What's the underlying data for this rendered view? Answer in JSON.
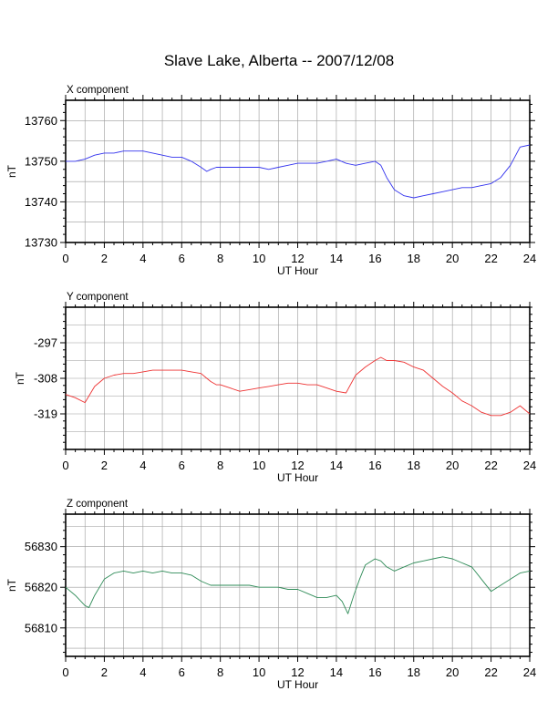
{
  "title": "Slave Lake, Alberta -- 2007/12/08",
  "chart_data": [
    {
      "type": "line",
      "title": "X component",
      "xlabel": "UT Hour",
      "ylabel": "nT",
      "xlim": [
        0,
        24
      ],
      "ylim": [
        13730,
        13765
      ],
      "xticks": [
        0,
        2,
        4,
        6,
        8,
        10,
        12,
        14,
        16,
        18,
        20,
        22,
        24
      ],
      "yticks": [
        13730,
        13740,
        13750,
        13760
      ],
      "grid": true,
      "color": "#3333ee",
      "series": [
        {
          "x": [
            0,
            0.5,
            1,
            1.5,
            2,
            2.5,
            3,
            3.5,
            4,
            4.5,
            5,
            5.5,
            6,
            6.5,
            7,
            7.3,
            7.5,
            7.8,
            8,
            8.5,
            9,
            9.5,
            10,
            10.5,
            11,
            11.5,
            12,
            12.5,
            13,
            13.5,
            14,
            14.5,
            15,
            15.5,
            16,
            16.3,
            16.6,
            17,
            17.5,
            18,
            18.5,
            19,
            19.5,
            20,
            20.5,
            21,
            21.5,
            22,
            22.5,
            23,
            23.5,
            24
          ],
          "y": [
            13750,
            13750,
            13750.5,
            13751.5,
            13752,
            13752,
            13752.5,
            13752.5,
            13752.5,
            13752,
            13751.5,
            13751,
            13751,
            13750,
            13748.5,
            13747.5,
            13748,
            13748.5,
            13748.5,
            13748.5,
            13748.5,
            13748.5,
            13748.5,
            13748,
            13748.5,
            13749,
            13749.5,
            13749.5,
            13749.5,
            13750,
            13750.5,
            13749.5,
            13749,
            13749.5,
            13750,
            13749,
            13746,
            13743,
            13741.5,
            13741,
            13741.5,
            13742,
            13742.5,
            13743,
            13743.5,
            13743.5,
            13744,
            13744.5,
            13746,
            13749,
            13753.5,
            13754
          ]
        }
      ]
    },
    {
      "type": "line",
      "title": "Y component",
      "xlabel": "UT Hour",
      "ylabel": "nT",
      "xlim": [
        0,
        24
      ],
      "ylim": [
        -330,
        -286
      ],
      "xticks": [
        0,
        2,
        4,
        6,
        8,
        10,
        12,
        14,
        16,
        18,
        20,
        22,
        24
      ],
      "yticks": [
        -319,
        -308,
        -297
      ],
      "grid": true,
      "color": "#ee3333",
      "series": [
        {
          "x": [
            0,
            0.5,
            1,
            1.5,
            2,
            2.5,
            3,
            3.5,
            4,
            4.5,
            5,
            5.5,
            6,
            6.5,
            7,
            7.3,
            7.5,
            7.8,
            8,
            8.5,
            9,
            9.5,
            10,
            10.5,
            11,
            11.5,
            12,
            12.5,
            13,
            13.5,
            14,
            14.5,
            15,
            15.5,
            16,
            16.3,
            16.6,
            17,
            17.5,
            18,
            18.5,
            19,
            19.5,
            20,
            20.5,
            21,
            21.5,
            22,
            22.5,
            23,
            23.5,
            24
          ],
          "y": [
            -313,
            -314,
            -315.5,
            -310.5,
            -308,
            -307,
            -306.5,
            -306.5,
            -306,
            -305.5,
            -305.5,
            -305.5,
            -305.5,
            -306,
            -306.5,
            -308,
            -309,
            -310,
            -310,
            -311,
            -312,
            -311.5,
            -311,
            -310.5,
            -310,
            -309.5,
            -309.5,
            -310,
            -310,
            -311,
            -312,
            -312.5,
            -307,
            -304.5,
            -302.5,
            -301.5,
            -302.5,
            -302.5,
            -303,
            -304.5,
            -305.5,
            -308,
            -310.5,
            -312.5,
            -315,
            -316.5,
            -318.5,
            -319.5,
            -319.5,
            -318.5,
            -316.5,
            -319
          ]
        }
      ]
    },
    {
      "type": "line",
      "title": "Z component",
      "xlabel": "UT Hour",
      "ylabel": "nT",
      "xlim": [
        0,
        24
      ],
      "ylim": [
        56803,
        56838
      ],
      "xticks": [
        0,
        2,
        4,
        6,
        8,
        10,
        12,
        14,
        16,
        18,
        20,
        22,
        24
      ],
      "yticks": [
        56810,
        56820,
        56830
      ],
      "grid": true,
      "color": "#2e8b57",
      "series": [
        {
          "x": [
            0,
            0.5,
            1,
            1.2,
            1.5,
            2,
            2.5,
            3,
            3.5,
            4,
            4.5,
            5,
            5.5,
            6,
            6.5,
            7,
            7.5,
            8,
            8.5,
            9,
            9.5,
            10,
            10.5,
            11,
            11.5,
            12,
            12.5,
            13,
            13.5,
            14,
            14.3,
            14.6,
            14.9,
            15.2,
            15.5,
            16,
            16.3,
            16.6,
            17,
            17.5,
            18,
            18.5,
            19,
            19.5,
            20,
            20.5,
            21,
            21.5,
            22,
            22.5,
            23,
            23.5,
            24
          ],
          "y": [
            56820,
            56818,
            56815.5,
            56815,
            56818,
            56822,
            56823.5,
            56824,
            56823.5,
            56824,
            56823.5,
            56824,
            56823.5,
            56823.5,
            56823,
            56821.5,
            56820.5,
            56820.5,
            56820.5,
            56820.5,
            56820.5,
            56820,
            56820,
            56820,
            56819.5,
            56819.5,
            56818.5,
            56817.5,
            56817.5,
            56818,
            56816.5,
            56813.5,
            56818,
            56822,
            56825.5,
            56827,
            56826.5,
            56825,
            56824,
            56825,
            56826,
            56826.5,
            56827,
            56827.5,
            56827,
            56826,
            56825,
            56822,
            56819,
            56820.5,
            56822,
            56823.5,
            56824
          ]
        }
      ]
    }
  ]
}
